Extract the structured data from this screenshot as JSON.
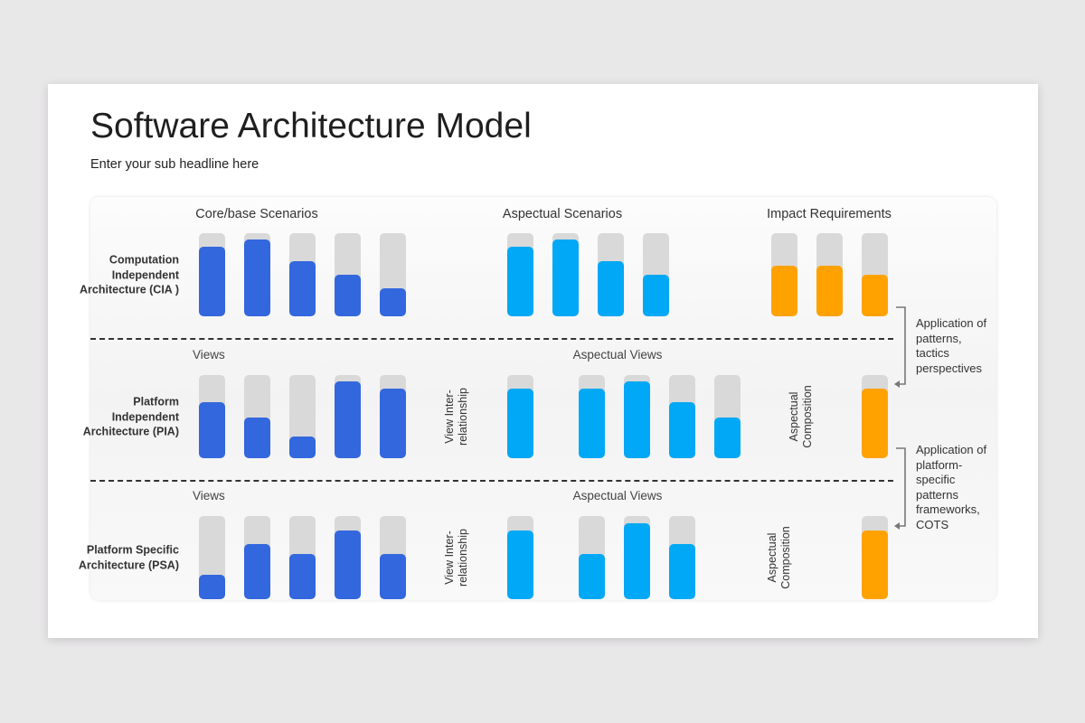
{
  "title": "Software Architecture Model",
  "subtitle": "Enter your sub headline here",
  "colors": {
    "core": "#3367de",
    "aspectual": "#00a8f5",
    "impact": "#ffa200",
    "track": "#d9d9d9"
  },
  "headers": {
    "core": "Core/base Scenarios",
    "aspectual": "Aspectual Scenarios",
    "impact": "Impact Requirements"
  },
  "rows": [
    {
      "label": "Computation Independent Architecture (CIA )",
      "groups": [
        {
          "kind": "core",
          "values": [
            0.84,
            0.92,
            0.66,
            0.5,
            0.34
          ]
        },
        {
          "kind": "aspectual",
          "values": [
            0.84,
            0.92,
            0.66,
            0.5
          ]
        },
        {
          "kind": "impact",
          "values": [
            0.61,
            0.61,
            0.5
          ]
        }
      ]
    },
    {
      "label": "Platform Independent Architecture (PIA)",
      "views": "Views",
      "aspectual_views": "Aspectual Views",
      "view_rel": "View Inter-\nrelationship",
      "composition": "Aspectual\nComposition",
      "groups": [
        {
          "kind": "core",
          "values": [
            0.67,
            0.49,
            0.26,
            0.92,
            0.84
          ]
        },
        {
          "kind": "aspectual",
          "values": [
            0.84,
            0.84,
            0.92,
            0.67,
            0.49
          ]
        },
        {
          "kind": "impact",
          "values": [
            0.84
          ]
        }
      ]
    },
    {
      "label": "Platform Specific Architecture (PSA)",
      "views": "Views",
      "aspectual_views": "Aspectual Views",
      "view_rel": "View Inter-\nrelationship",
      "composition": "Aspectual\nComposition",
      "groups": [
        {
          "kind": "core",
          "values": [
            0.29,
            0.66,
            0.54,
            0.83,
            0.54
          ]
        },
        {
          "kind": "aspectual",
          "values": [
            0.83,
            0.54,
            0.91,
            0.66
          ]
        },
        {
          "kind": "impact",
          "values": [
            0.83
          ]
        }
      ]
    }
  ],
  "notes": [
    "Application of patterns, tactics perspectives",
    "Application of platform-specific patterns frameworks, COTS"
  ]
}
